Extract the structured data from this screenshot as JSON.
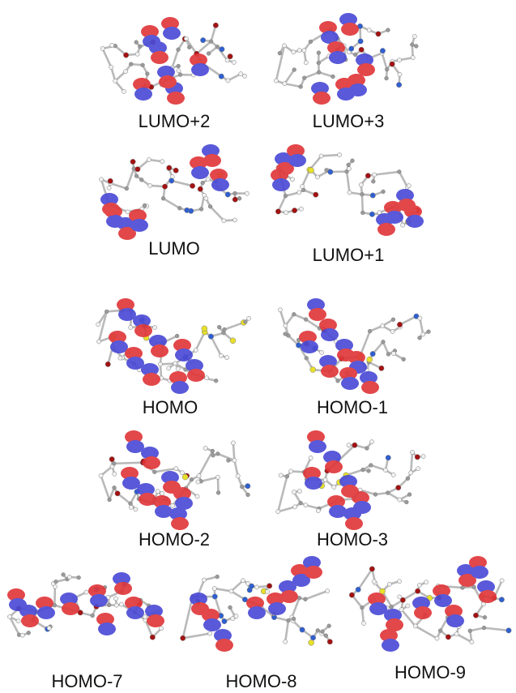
{
  "colors": {
    "positive_lobe": "#e0383b",
    "negative_lobe": "#4b4bd6",
    "bond": "#b9b9b9",
    "oxygen": "#a31212",
    "nitrogen": "#2f5fd0",
    "sulfur": "#e8e02a",
    "hydrogen": "#f2f2f2"
  },
  "orbitals": [
    {
      "label": "LUMO+2"
    },
    {
      "label": "LUMO+3"
    },
    {
      "label": "LUMO"
    },
    {
      "label": "LUMO+1"
    },
    {
      "label": "HOMO"
    },
    {
      "label": "HOMO-1"
    },
    {
      "label": "HOMO-2"
    },
    {
      "label": "HOMO-3"
    },
    {
      "label": "HOMO-7"
    },
    {
      "label": "HOMO-8"
    },
    {
      "label": "HOMO-9"
    }
  ]
}
